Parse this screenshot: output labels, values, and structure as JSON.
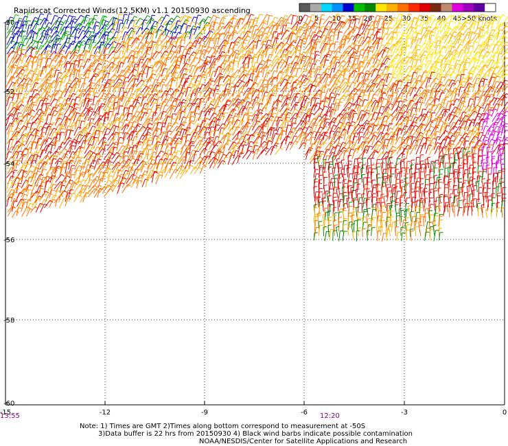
{
  "title": "Rapidscat Corrected Winds(12.5KM) v1.1 20150930 ascending",
  "legend": {
    "labels": [
      "0",
      "5",
      "10",
      "15",
      "20",
      "25",
      "30",
      "35",
      "40",
      "45",
      ">50 knots"
    ],
    "colors": [
      "#5a5a5a",
      "#aaaaaa",
      "#00d8ff",
      "#0090ff",
      "#0000d0",
      "#00c000",
      "#008800",
      "#ffe600",
      "#ffb000",
      "#ff7000",
      "#ff2a00",
      "#e00000",
      "#7a2a10",
      "#c08a70",
      "#e000e0",
      "#a000c0",
      "#6000a0",
      "#ffffff"
    ]
  },
  "axes": {
    "x_ticks": [
      "-15",
      "-12",
      "-9",
      "-6",
      "-3",
      "0"
    ],
    "y_ticks": [
      "-50",
      "-52",
      "-54",
      "-56",
      "-58",
      "-60"
    ],
    "time_left": "13:55",
    "time_mid": "12:20"
  },
  "notes": {
    "line1": "Note: 1) Times are GMT 2)Times along bottom correspond to measurement at -50S",
    "line2": "3)Data buffer is 22 hrs from 20150930 4) Black wind barbs indicate possible contamination",
    "line3": "NOAA/NESDIS/Center for Satellite Applications and Research"
  }
}
